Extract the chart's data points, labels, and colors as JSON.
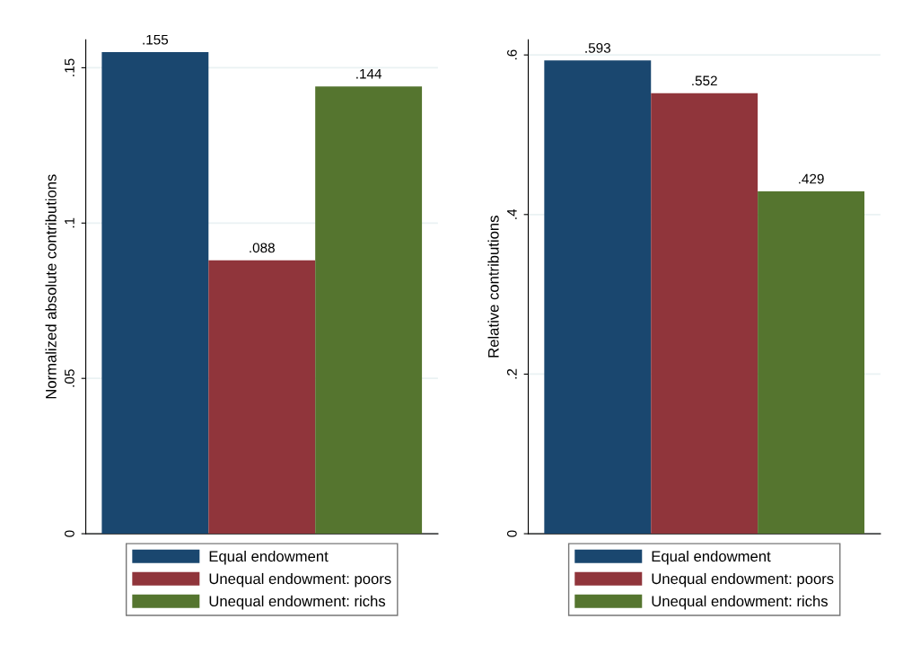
{
  "chart_data": [
    {
      "type": "bar",
      "categories": [
        null
      ],
      "ylabel": "Normalized absolute contributions",
      "ylim": [
        0,
        0.159
      ],
      "yticks": [
        0,
        {
          "value": 0.05,
          "label": ".05"
        },
        {
          "value": 0.1,
          "label": ".1"
        },
        {
          "value": 0.15,
          "label": ".15"
        }
      ],
      "grid": "y",
      "legend": "bottom",
      "series": [
        {
          "name": "Equal endowment",
          "color": "#1a476f",
          "values": [
            0.155
          ],
          "value_labels": [
            ".155"
          ]
        },
        {
          "name": "Unequal endowment: poors",
          "color": "#90353b",
          "values": [
            0.088
          ],
          "value_labels": [
            ".088"
          ]
        },
        {
          "name": "Unequal endowment: richs",
          "color": "#55752f",
          "values": [
            0.144
          ],
          "value_labels": [
            ".144"
          ]
        }
      ]
    },
    {
      "type": "bar",
      "categories": [
        null
      ],
      "ylabel": "Relative contributions",
      "ylim": [
        0,
        0.619
      ],
      "yticks": [
        0,
        {
          "value": 0.2,
          "label": ".2"
        },
        {
          "value": 0.4,
          "label": ".4"
        },
        {
          "value": 0.6,
          "label": ".6"
        }
      ],
      "grid": "y",
      "legend": "bottom",
      "series": [
        {
          "name": "Equal endowment",
          "color": "#1a476f",
          "values": [
            0.593
          ],
          "value_labels": [
            ".593"
          ]
        },
        {
          "name": "Unequal endowment: poors",
          "color": "#90353b",
          "values": [
            0.552
          ],
          "value_labels": [
            ".552"
          ]
        },
        {
          "name": "Unequal endowment: richs",
          "color": "#55752f",
          "values": [
            0.429
          ],
          "value_labels": [
            ".429"
          ]
        }
      ]
    }
  ]
}
